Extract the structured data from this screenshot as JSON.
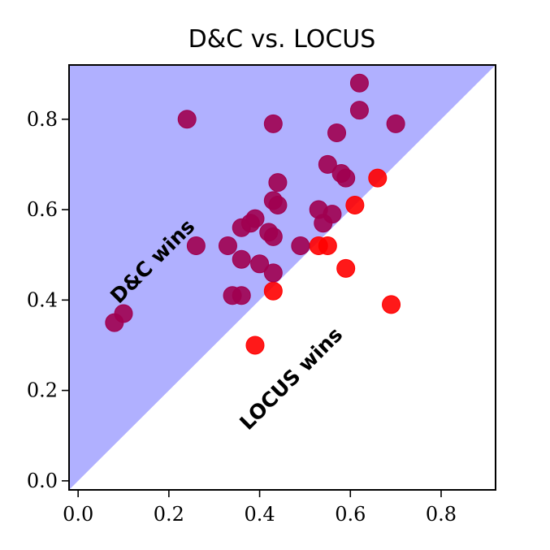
{
  "chart_data": {
    "type": "scatter",
    "title": "D&C vs. LOCUS",
    "xlabel": "",
    "ylabel": "",
    "xlim": [
      -0.02,
      0.92
    ],
    "ylim": [
      -0.02,
      0.92
    ],
    "xticks": [
      0.0,
      0.2,
      0.4,
      0.6,
      0.8
    ],
    "yticks": [
      0.0,
      0.2,
      0.4,
      0.6,
      0.8
    ],
    "tick_labels": [
      "0.0",
      "0.2",
      "0.4",
      "0.6",
      "0.8"
    ],
    "grid": false,
    "diagonal_fill_color": "#b0b0ff",
    "region_labels": {
      "upper": "D&C wins",
      "lower": "LOCUS wins"
    },
    "series": [
      {
        "color": "#ff0000",
        "points": [
          [
            0.39,
            0.3
          ],
          [
            0.69,
            0.39
          ],
          [
            0.43,
            0.42
          ],
          [
            0.59,
            0.47
          ],
          [
            0.53,
            0.52
          ],
          [
            0.55,
            0.52
          ],
          [
            0.61,
            0.61
          ],
          [
            0.66,
            0.67
          ]
        ]
      },
      {
        "color": "#a00050",
        "points": [
          [
            0.08,
            0.35
          ],
          [
            0.1,
            0.37
          ],
          [
            0.24,
            0.8
          ],
          [
            0.26,
            0.52
          ],
          [
            0.33,
            0.52
          ],
          [
            0.34,
            0.41
          ],
          [
            0.36,
            0.41
          ],
          [
            0.36,
            0.49
          ],
          [
            0.36,
            0.56
          ],
          [
            0.38,
            0.57
          ],
          [
            0.39,
            0.58
          ],
          [
            0.4,
            0.48
          ],
          [
            0.42,
            0.55
          ],
          [
            0.43,
            0.54
          ],
          [
            0.43,
            0.46
          ],
          [
            0.43,
            0.62
          ],
          [
            0.44,
            0.61
          ],
          [
            0.44,
            0.66
          ],
          [
            0.43,
            0.79
          ],
          [
            0.49,
            0.52
          ],
          [
            0.53,
            0.6
          ],
          [
            0.54,
            0.57
          ],
          [
            0.56,
            0.59
          ],
          [
            0.55,
            0.7
          ],
          [
            0.58,
            0.68
          ],
          [
            0.59,
            0.67
          ],
          [
            0.57,
            0.77
          ],
          [
            0.62,
            0.82
          ],
          [
            0.62,
            0.88
          ],
          [
            0.7,
            0.79
          ]
        ]
      }
    ]
  }
}
